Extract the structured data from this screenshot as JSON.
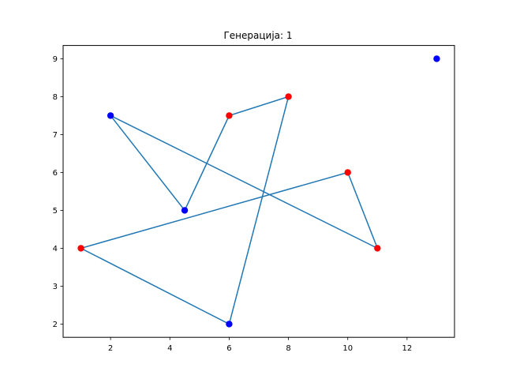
{
  "chart_data": {
    "type": "scatter",
    "title": "Генерација: 1",
    "xlabel": "",
    "ylabel": "",
    "xlim": [
      0.4,
      13.6
    ],
    "ylim": [
      1.65,
      9.35
    ],
    "xticks": [
      2,
      4,
      6,
      8,
      10,
      12
    ],
    "yticks": [
      2,
      3,
      4,
      5,
      6,
      7,
      8,
      9
    ],
    "grid": false,
    "line_color": "#1f77b4",
    "path": [
      [
        8,
        8
      ],
      [
        6,
        2
      ],
      [
        1,
        4
      ],
      [
        10,
        6
      ],
      [
        11,
        4
      ],
      [
        2,
        7.5
      ],
      [
        4.5,
        5
      ],
      [
        6,
        7.5
      ],
      [
        8,
        8
      ]
    ],
    "points": [
      {
        "x": 13,
        "y": 9,
        "color": "#0000ff"
      },
      {
        "x": 2,
        "y": 7.5,
        "color": "#0000ff"
      },
      {
        "x": 4.5,
        "y": 5,
        "color": "#0000ff"
      },
      {
        "x": 6,
        "y": 2,
        "color": "#0000ff"
      },
      {
        "x": 6,
        "y": 7.5,
        "color": "#ff0000"
      },
      {
        "x": 8,
        "y": 8,
        "color": "#ff0000"
      },
      {
        "x": 10,
        "y": 6,
        "color": "#ff0000"
      },
      {
        "x": 1,
        "y": 4,
        "color": "#ff0000"
      },
      {
        "x": 11,
        "y": 4,
        "color": "#ff0000"
      }
    ]
  }
}
